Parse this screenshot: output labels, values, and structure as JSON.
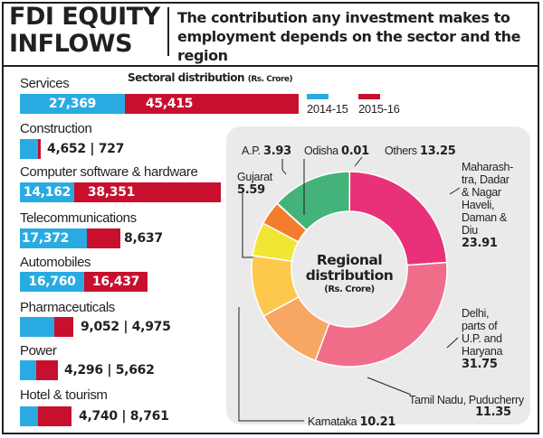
{
  "header": {
    "title_line1": "FDI EQUITY",
    "title_line2": "INFLOWS",
    "subtitle": "The contribution any investment makes to employment depends on the sector and the region"
  },
  "colors": {
    "series_2014_15": "#29abe2",
    "series_2015_16": "#c8102e",
    "panel_background": "#eaeaea"
  },
  "chart_data": [
    {
      "type": "bar",
      "orientation": "horizontal",
      "stacked": true,
      "title": "Sectoral distribution",
      "title_unit": "(Rs. Crore)",
      "legend_position": "top-right",
      "categories": [
        "Services",
        "Construction",
        "Computer software & hardware",
        "Telecommunications",
        "Automobiles",
        "Pharmaceuticals",
        "Power",
        "Hotel & tourism"
      ],
      "series": [
        {
          "name": "2014-15",
          "color": "#29abe2",
          "values": [
            27369,
            4652,
            14162,
            17372,
            16760,
            9052,
            4296,
            4740
          ]
        },
        {
          "name": "2015-16",
          "color": "#c8102e",
          "values": [
            45415,
            727,
            38351,
            8637,
            16437,
            4975,
            5662,
            8761
          ]
        }
      ],
      "value_labels": [
        "27,369",
        "45,415",
        "4,652 | 727",
        "14,162",
        "38,351",
        "17,372",
        "8,637",
        "16,760",
        "16,437",
        "9,052 | 4,975",
        "4,296 | 5,662",
        "4,740 | 8,761"
      ]
    },
    {
      "type": "pie",
      "donut": true,
      "title_line1": "Regional",
      "title_line2": "distribution",
      "title_unit": "(Rs. Crore)",
      "slices": [
        {
          "label": "Maharashtra, Dadar & Nagar Haveli, Daman & Diu",
          "value": 23.91,
          "value_label": "23.91",
          "color": "#e9317a"
        },
        {
          "label": "Delhi, parts of U.P. and Haryana",
          "value": 31.75,
          "value_label": "31.75",
          "color": "#f06d89"
        },
        {
          "label": "Tamil Nadu, Puducherry",
          "value": 11.35,
          "value_label": "11.35",
          "color": "#f7a664"
        },
        {
          "label": "Karnataka",
          "value": 10.21,
          "value_label": "10.21",
          "color": "#fdc84b"
        },
        {
          "label": "Gujarat",
          "value": 5.59,
          "value_label": "5.59",
          "color": "#f1e634"
        },
        {
          "label": "A.P.",
          "value": 3.93,
          "value_label": "3.93",
          "color": "#f47d2b"
        },
        {
          "label": "Odisha",
          "value": 0.01,
          "value_label": "0.01",
          "color": "#2a9d8f"
        },
        {
          "label": "Others",
          "value": 13.25,
          "value_label": "13.25",
          "color": "#43b37a"
        }
      ]
    }
  ],
  "sectors": [
    {
      "name": "Services",
      "v14": "27,369",
      "v15": "45,415"
    },
    {
      "name": "Construction",
      "combined": "4,652 | 727"
    },
    {
      "name": "Computer software & hardware",
      "v14": "14,162",
      "v15": "38,351"
    },
    {
      "name": "Telecommunications",
      "v14": "17,372",
      "v15": "8,637"
    },
    {
      "name": "Automobiles",
      "v14": "16,760",
      "v15": "16,437"
    },
    {
      "name": "Pharmaceuticals",
      "combined": "9,052 | 4,975"
    },
    {
      "name": "Power",
      "combined": "4,296 | 5,662"
    },
    {
      "name": "Hotel & tourism",
      "combined": "4,740 | 8,761"
    }
  ],
  "sectoral_title": "Sectoral distribution",
  "sectoral_unit": "(Rs. Crore)",
  "legend": {
    "s1": "2014-15",
    "s2": "2015-16"
  },
  "regional": {
    "title1": "Regional",
    "title2": "distribution",
    "unit": "(Rs. Crore)",
    "ap_name": "A.P.",
    "ap_val": "3.93",
    "odisha_name": "Odisha",
    "odisha_val": "0.01",
    "others_name": "Others",
    "others_val": "13.25",
    "gujarat_name": "Gujarat",
    "gujarat_val": "5.59",
    "maha_l1": "Maharash-",
    "maha_l2": "tra, Dadar",
    "maha_l3": "& Nagar",
    "maha_l4": "Haveli,",
    "maha_l5": "Daman &",
    "maha_l6": "Diu",
    "maha_val": "23.91",
    "delhi_l1": "Delhi,",
    "delhi_l2": "parts of",
    "delhi_l3": "U.P. and",
    "delhi_l4": "Haryana",
    "delhi_val": "31.75",
    "tn_name": "Tamil Nadu, Puducherry",
    "tn_val": "11.35",
    "karnataka_name": "Karnataka",
    "karnataka_val": "10.21"
  }
}
